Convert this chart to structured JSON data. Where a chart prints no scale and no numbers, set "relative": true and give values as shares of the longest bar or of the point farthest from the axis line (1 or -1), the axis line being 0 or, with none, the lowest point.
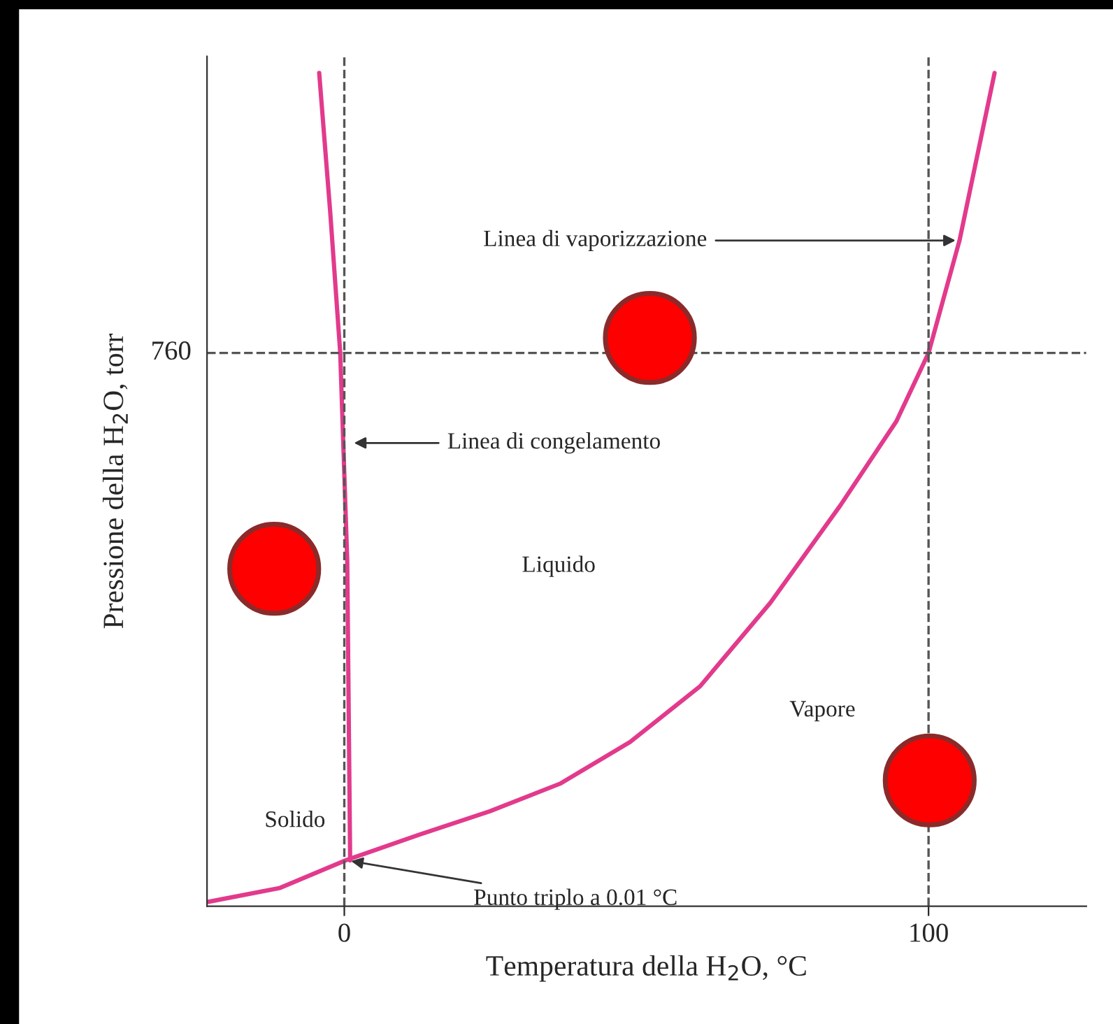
{
  "chart_data": {
    "type": "line",
    "relative": true,
    "xlabel": "Temperatura della H$_{2}$O, °C",
    "ylabel": "Pressione della H$_{2}$O, torr",
    "xlim": [
      -23.5,
      127
    ],
    "xticks": [
      0,
      100
    ],
    "grid": false,
    "legend": false,
    "line_style": "solid",
    "series": [
      {
        "color": "#e23a8c",
        "x": [
          -23.5,
          -11.0,
          0.2,
          12.9,
          24.9,
          36.9,
          48.9,
          60.9,
          72.9,
          84.9,
          94.5,
          100,
          105.3,
          111.3
        ],
        "values": [
          0.005,
          0.022,
          0.055,
          0.086,
          0.114,
          0.147,
          0.197,
          0.264,
          0.364,
          0.481,
          0.582,
          0.664,
          0.799,
          1
        ]
      },
      {
        "color": "#e23a8c",
        "x": [
          -4.3,
          -2.4,
          -0.7,
          0.5,
          1.0
        ],
        "values": [
          1,
          0.832,
          0.664,
          0.415,
          0.055
        ]
      },
      {
        "type": "scatter",
        "marker": "circle",
        "color": "#ff0000",
        "x": [
          52.3,
          -12.0,
          100.2
        ],
        "values": [
          0.682,
          0.405,
          0.151
        ]
      }
    ],
    "ref_lines": [
      {
        "axis": "y",
        "value": 0.664,
        "color": "#555555",
        "line_style": "dashed"
      },
      {
        "axis": "x",
        "value": 100,
        "color": "#555555",
        "line_style": "dashed"
      },
      {
        "axis": "x",
        "value": 0,
        "color": "#555555",
        "line_style": "dashed"
      }
    ],
    "annotations": [
      {
        "text": "Linea di vaporizzazione",
        "x": 105.3,
        "y": 0.799
      },
      {
        "text": "Linea di congelamento",
        "x": 1.0,
        "y": 0.556
      },
      {
        "text": "Punto triplo a 0.01 °C",
        "x": 0.5,
        "y": 0.055
      },
      "760",
      "Liquido",
      "Vapore",
      "Solido"
    ]
  }
}
